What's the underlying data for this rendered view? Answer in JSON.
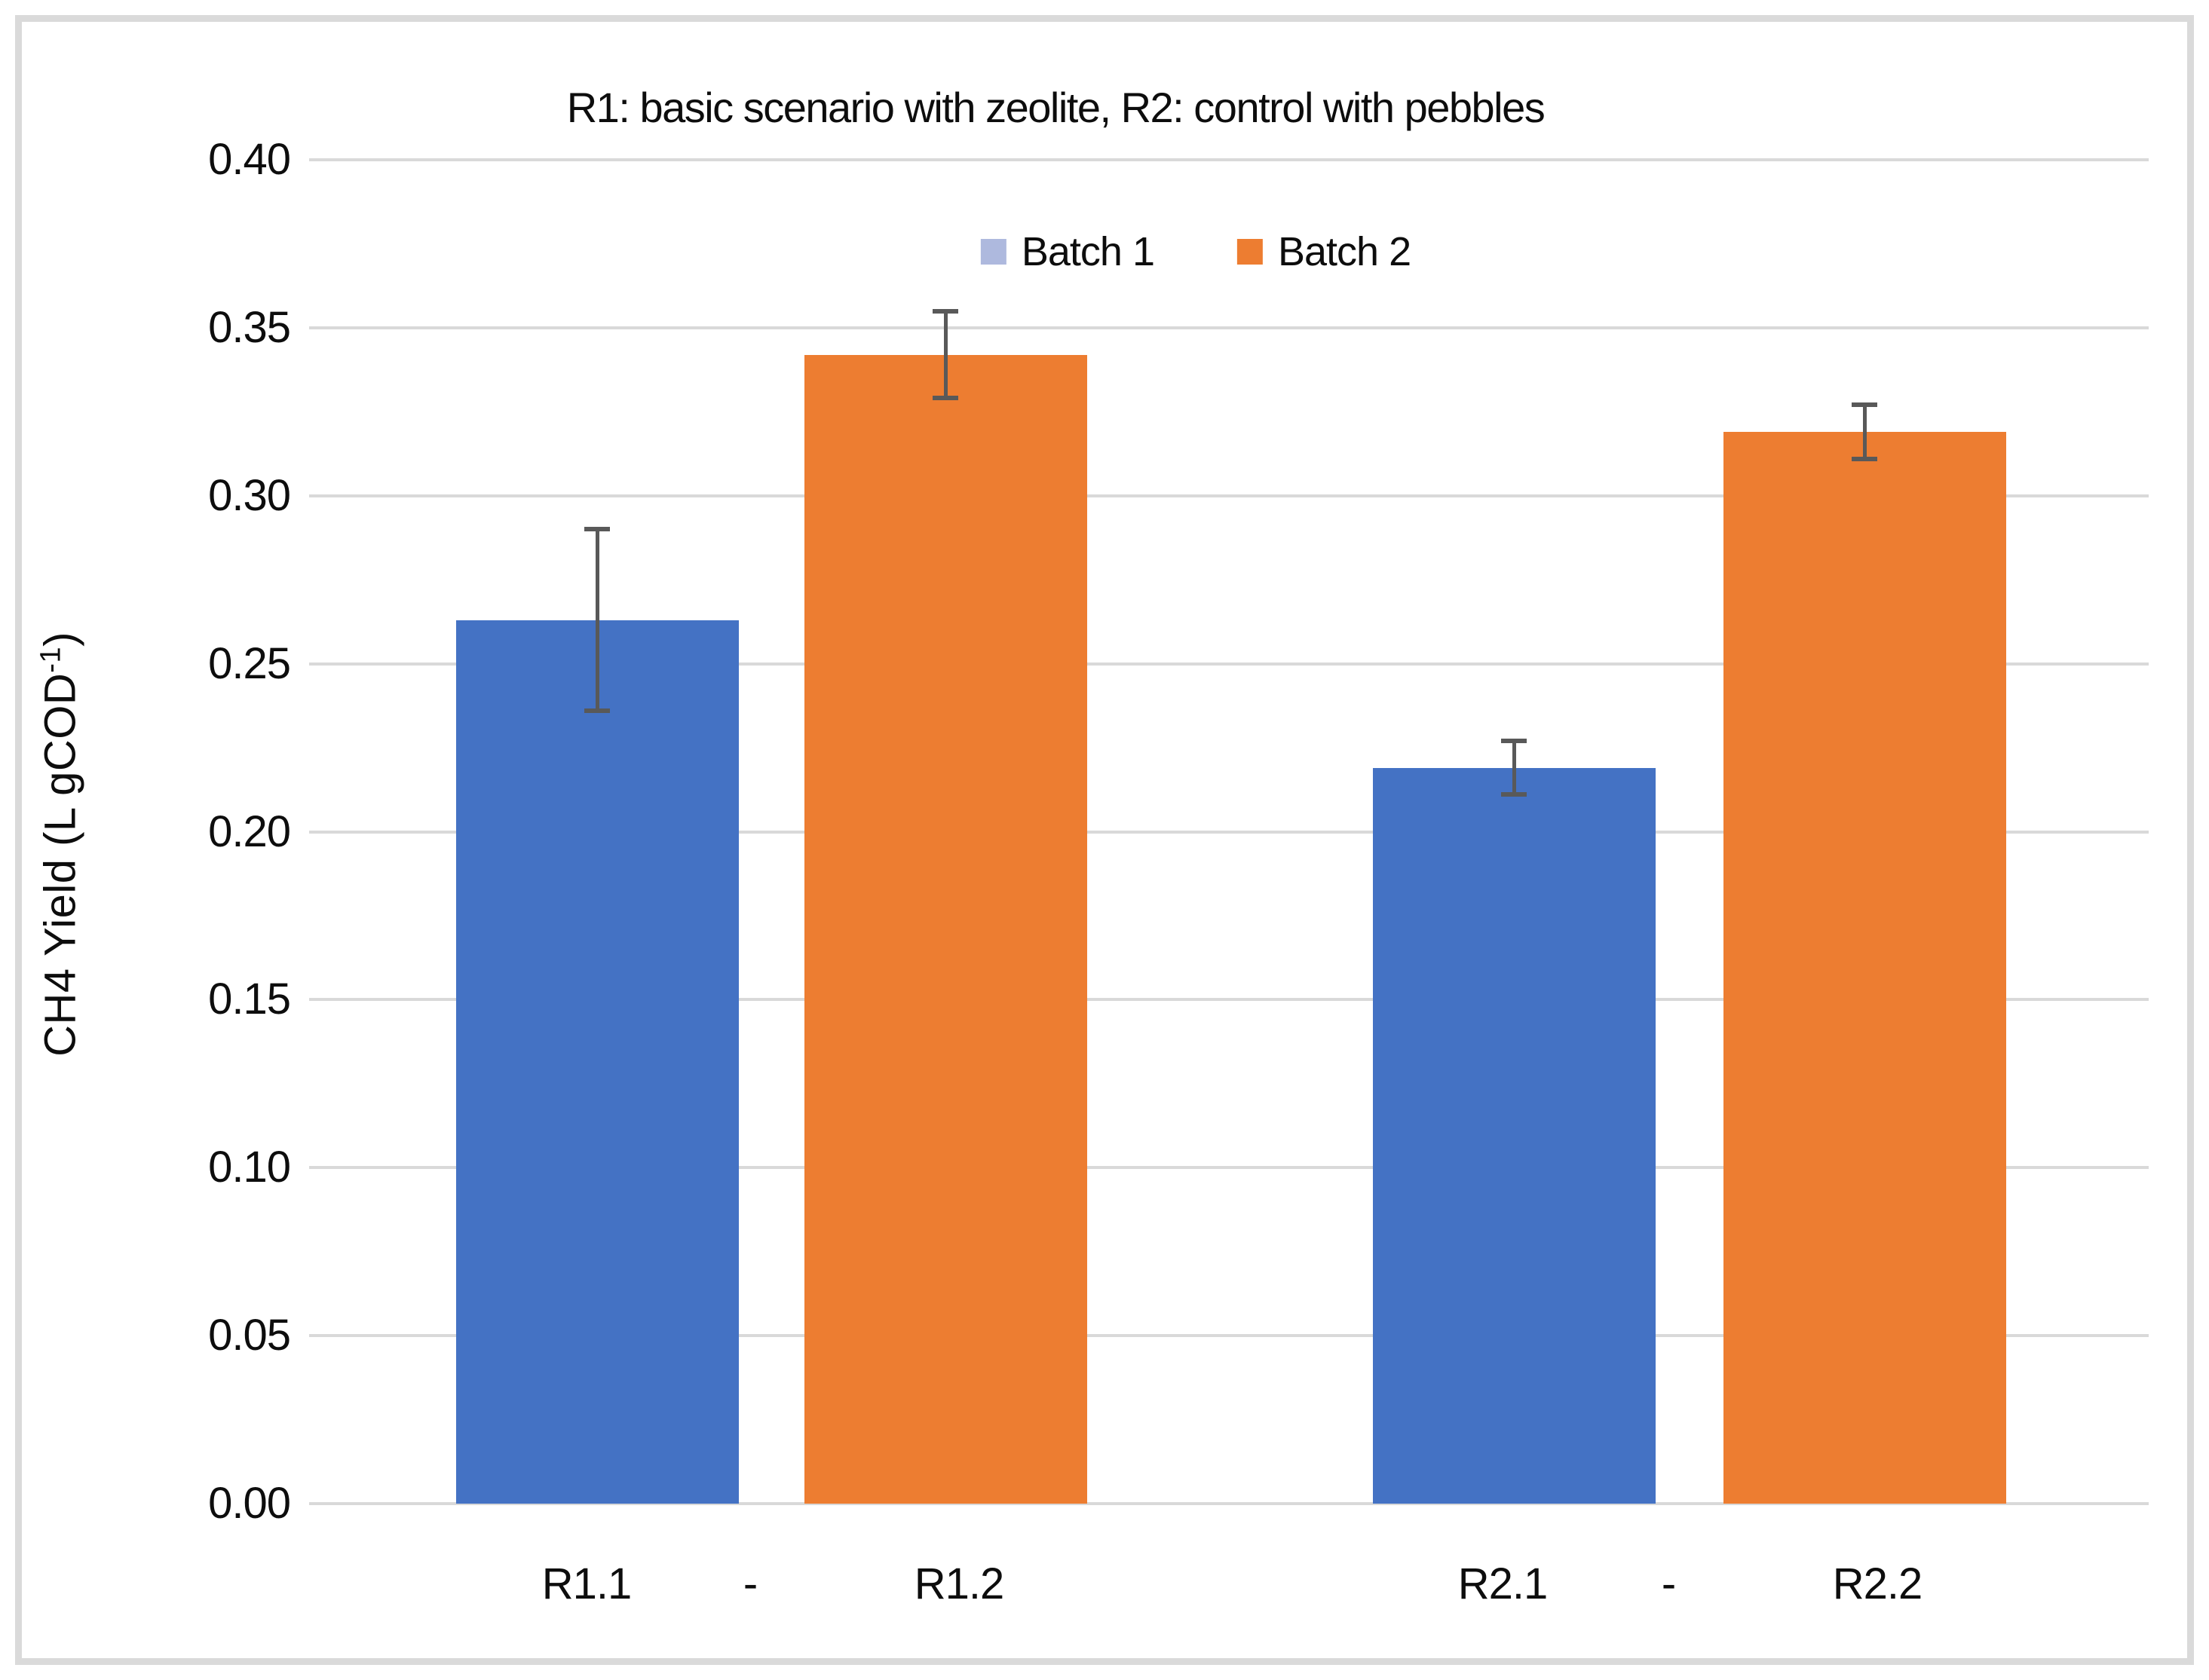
{
  "title": "R1: basic scenario with zeolite, R2: control with pebbles",
  "legend": {
    "items": [
      {
        "label": "Batch 1",
        "marker_color": "#AEB9DE"
      },
      {
        "label": "Batch 2",
        "marker_color": "#ED7D31"
      }
    ]
  },
  "y_axis": {
    "label_prefix": "CH4 Yield (L gCOD",
    "label_sup": "-1",
    "label_suffix": ")",
    "min": 0.0,
    "max": 0.4,
    "step": 0.05,
    "ticks_top_to_bottom": [
      "0.40",
      "0.35",
      "0.30",
      "0.25",
      "0.20",
      "0.15",
      "0.10",
      "0.05",
      "0.00"
    ]
  },
  "x_axis": {
    "labels": [
      "R1.1",
      "-",
      "R1.2",
      "R2.1",
      "-",
      "R2.2"
    ]
  },
  "colors": {
    "batch1_bar": "#4472C4",
    "batch2_bar": "#ED7D31",
    "batch1_legend_marker": "#AEB9DE",
    "gridline": "#D9D9D9",
    "error_bar": "#595959",
    "frame_border": "#DADADA",
    "text": "#0D0D0D"
  },
  "chart_data": {
    "type": "bar",
    "title": "R1: basic scenario with zeolite, R2: control with pebbles",
    "xlabel": "",
    "ylabel": "CH4 Yield (L gCOD-1)",
    "ylim": [
      0.0,
      0.4
    ],
    "ytick_step": 0.05,
    "grid": true,
    "legend_position": "top-center",
    "categories": [
      "R1.1",
      "R1.2",
      "R2.1",
      "R2.2"
    ],
    "bars": [
      {
        "category": "R1.1",
        "series": "Batch 1",
        "value": 0.263,
        "error": 0.027,
        "color": "#4472C4"
      },
      {
        "category": "R1.2",
        "series": "Batch 2",
        "value": 0.342,
        "error": 0.013,
        "color": "#ED7D31"
      },
      {
        "category": "R2.1",
        "series": "Batch 1",
        "value": 0.219,
        "error": 0.008,
        "color": "#4472C4"
      },
      {
        "category": "R2.2",
        "series": "Batch 2",
        "value": 0.319,
        "error": 0.008,
        "color": "#ED7D31"
      }
    ],
    "series": [
      {
        "name": "Batch 1",
        "color": "#4472C4",
        "categories": [
          "R1.1",
          "R2.1"
        ],
        "values": [
          0.263,
          0.219
        ],
        "errors": [
          0.027,
          0.008
        ]
      },
      {
        "name": "Batch 2",
        "color": "#ED7D31",
        "categories": [
          "R1.2",
          "R2.2"
        ],
        "values": [
          0.342,
          0.319
        ],
        "errors": [
          0.013,
          0.008
        ]
      }
    ]
  }
}
